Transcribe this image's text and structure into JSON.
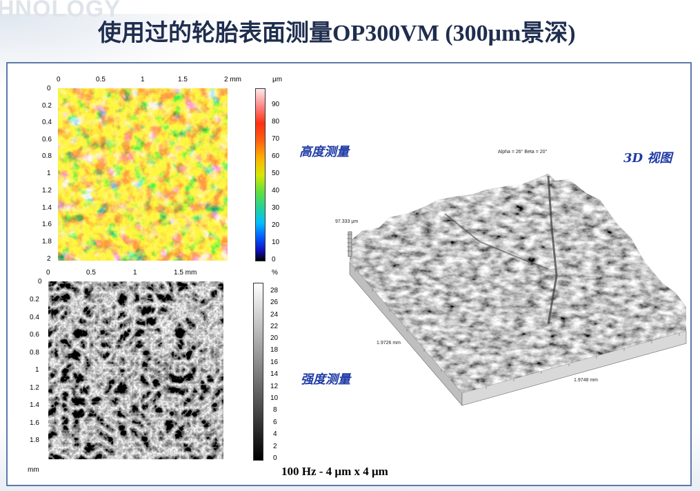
{
  "watermark": "HNOLOGY",
  "title": "使用过的轮胎表面测量OP300VM (300μm景深)",
  "top_panel": {
    "x_ticks": [
      "0",
      "0.5",
      "1",
      "1.5",
      "2 mm"
    ],
    "y_ticks": [
      "0",
      "0.2",
      "0.4",
      "0.6",
      "0.8",
      "1",
      "1.2",
      "1.4",
      "1.6",
      "1.8",
      "2"
    ],
    "colorbar_unit": "μm",
    "colorbar_ticks": [
      "90",
      "80",
      "70",
      "60",
      "50",
      "40",
      "30",
      "20",
      "10",
      "0"
    ],
    "label": "高度测量"
  },
  "bottom_panel": {
    "x_ticks": [
      "0",
      "0.5",
      "1",
      "1.5 mm"
    ],
    "y_ticks": [
      "0",
      "0.2",
      "0.4",
      "0.6",
      "0.8",
      "1",
      "1.2",
      "1.4",
      "1.6",
      "1.8"
    ],
    "y_unit": "mm",
    "colorbar_unit": "%",
    "colorbar_ticks": [
      "28",
      "26",
      "24",
      "22",
      "20",
      "18",
      "16",
      "14",
      "12",
      "10",
      "8",
      "6",
      "4",
      "2",
      "0"
    ],
    "label": "强度测量"
  },
  "view3d": {
    "label": "3D 视图",
    "angles": "Alpha = 26°     Beta = 20°",
    "height": "97.333 μm",
    "dim_left": "1.9726 mm",
    "dim_right": "1.9748 mm"
  },
  "caption": "100 Hz - 4 μm x 4 μm"
}
